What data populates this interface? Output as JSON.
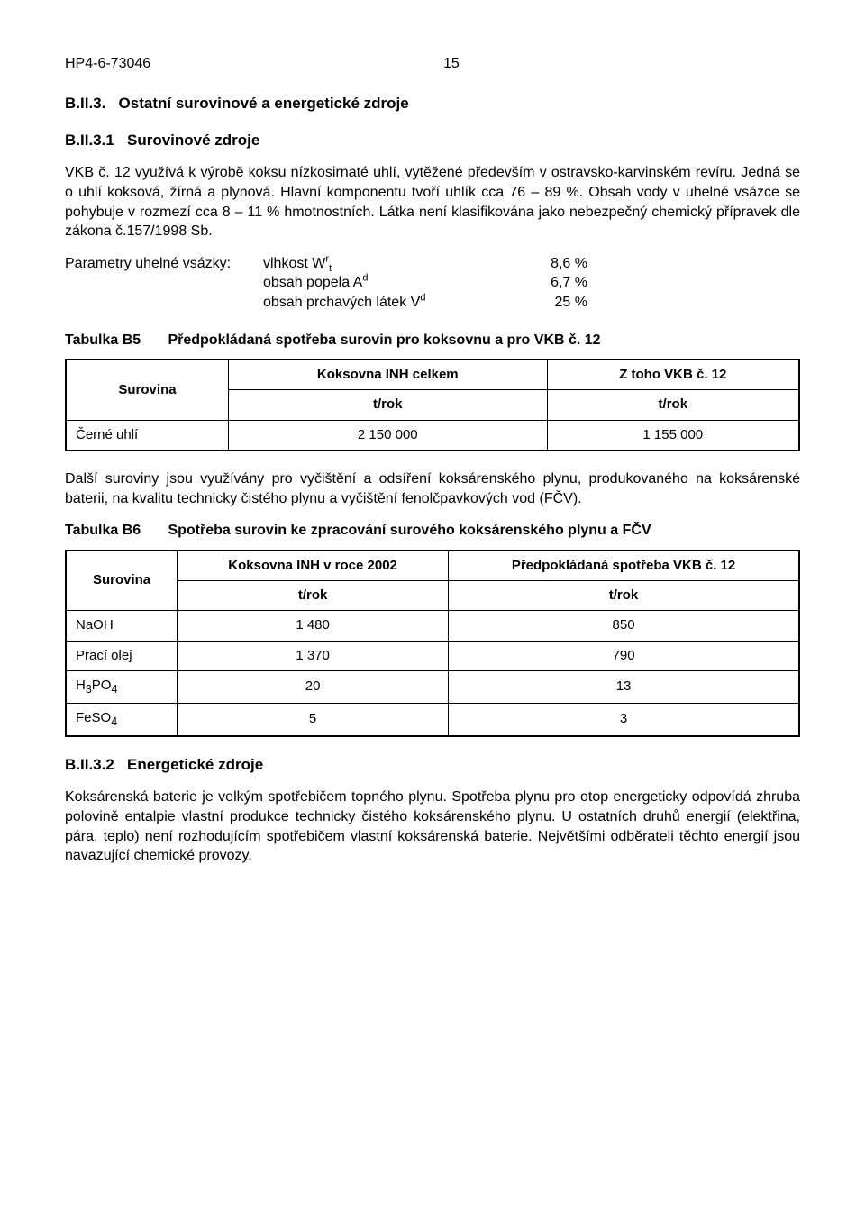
{
  "header": {
    "doc_id": "HP4-6-73046",
    "page_no": "15"
  },
  "heading1": {
    "num": "B.II.3.",
    "title": "Ostatní surovinové a energetické zdroje"
  },
  "heading1_1": {
    "num": "B.II.3.1",
    "title": "Surovinové zdroje"
  },
  "p1": "VKB č. 12 využívá k výrobě koksu nízkosirnaté uhlí, vytěžené především v ostravsko-karvinském revíru. Jedná se o uhlí koksová, žírná a plynová. Hlavní komponentu tvoří uhlík cca 76 – 89 %. Obsah vody v uhelné vsázce se pohybuje v rozmezí cca 8 – 11 % hmotnostních. Látka není klasifikována jako nebezpečný chemický přípravek dle zákona č.157/1998 Sb.",
  "params": {
    "label": "Parametry uhelné vsázky:",
    "rows": [
      {
        "item_pre": "vlhkost W",
        "sup": "r",
        "sub": "t",
        "post": "",
        "val": "8,6 %"
      },
      {
        "item_pre": "obsah popela A",
        "sup": "d",
        "sub": "",
        "post": "",
        "val": "6,7 %"
      },
      {
        "item_pre": "obsah prchavých látek V",
        "sup": "d",
        "sub": "",
        "post": "",
        "val": "25 %"
      }
    ]
  },
  "tableB5": {
    "lead": "Tabulka B5",
    "title": "Předpokládaná spotřeba surovin pro koksovnu a pro VKB č. 12",
    "surovina_label": "Surovina",
    "col1": "Koksovna INH celkem",
    "col2": "Z toho VKB č. 12",
    "unit": "t/rok",
    "rows": [
      {
        "label": "Černé uhlí",
        "c1": "2 150 000",
        "c2": "1 155 000"
      }
    ]
  },
  "p2": "Další suroviny jsou využívány pro vyčištění a odsíření koksárenského plynu, produkovaného na koksárenské baterii, na kvalitu technicky čistého plynu a vyčištění fenolčpavkových vod (FČV).",
  "tableB6": {
    "lead": "Tabulka B6",
    "title": "Spotřeba surovin ke zpracování surového koksárenského plynu a FČV",
    "surovina_label": "Surovina",
    "col1": "Koksovna INH v roce 2002",
    "col2": "Předpokládaná spotřeba VKB č. 12",
    "unit": "t/rok",
    "rows": [
      {
        "label": "NaOH",
        "c1": "1 480",
        "c2": "850"
      },
      {
        "label": "Prací olej",
        "c1": "1 370",
        "c2": "790"
      },
      {
        "label_html": "H<sub>3</sub>PO<sub>4</sub>",
        "c1": "20",
        "c2": "13"
      },
      {
        "label_html": "FeSO<sub>4</sub>",
        "c1": "5",
        "c2": "3"
      }
    ]
  },
  "heading1_2": {
    "num": "B.II.3.2",
    "title": "Energetické zdroje"
  },
  "p3": "Koksárenská baterie je velkým spotřebičem topného plynu. Spotřeba plynu pro otop energeticky odpovídá zhruba polovině entalpie vlastní produkce technicky čistého koksárenského plynu. U ostatních druhů energií (elektřina, pára, teplo) není rozhodujícím spotřebičem vlastní koksárenská baterie. Největšími odběrateli těchto energií jsou navazující chemické provozy."
}
